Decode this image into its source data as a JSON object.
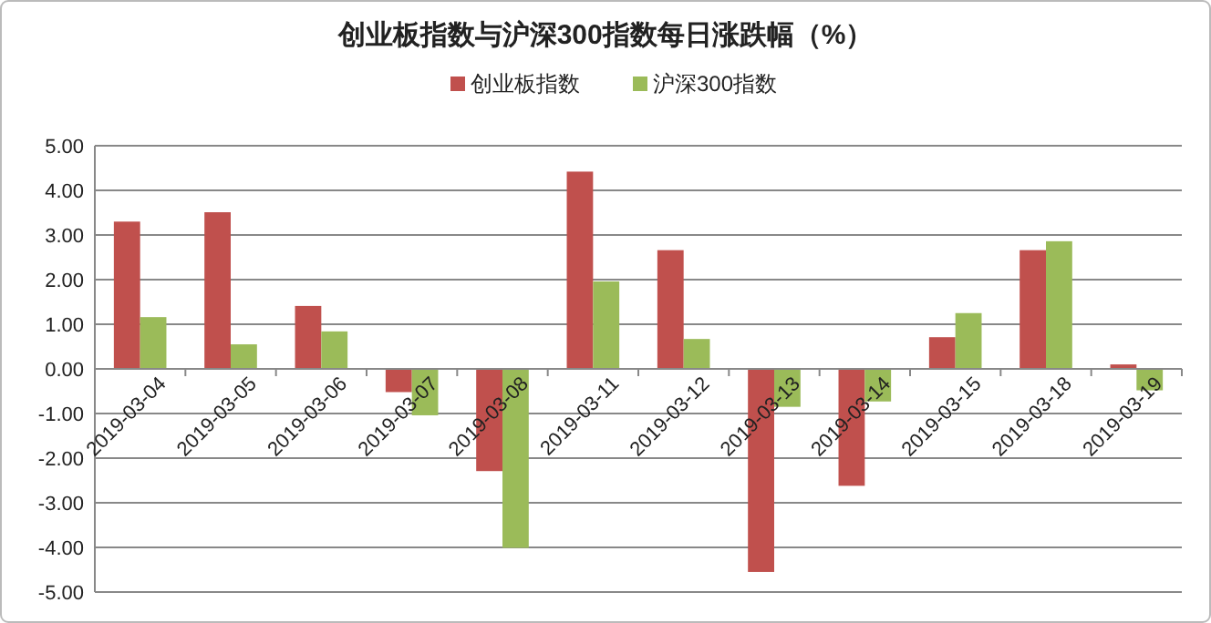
{
  "chart_data": {
    "type": "bar",
    "title": "创业板指数与沪深300指数每日涨跌幅（%）",
    "categories": [
      "2019-03-04",
      "2019-03-05",
      "2019-03-06",
      "2019-03-07",
      "2019-03-08",
      "2019-03-11",
      "2019-03-12",
      "2019-03-13",
      "2019-03-14",
      "2019-03-15",
      "2019-03-18",
      "2019-03-19"
    ],
    "series": [
      {
        "name": "创业板指数",
        "color": "#c0504d",
        "values": [
          3.3,
          3.51,
          1.41,
          -0.52,
          -2.29,
          4.42,
          2.66,
          -4.55,
          -2.62,
          0.71,
          2.66,
          0.1
        ]
      },
      {
        "name": "沪深300指数",
        "color": "#9bbb59",
        "values": [
          1.16,
          0.55,
          0.84,
          -1.04,
          -4.01,
          1.96,
          0.67,
          -0.85,
          -0.73,
          1.25,
          2.86,
          -0.48
        ]
      }
    ],
    "ylim": [
      -5,
      5
    ],
    "yticks": [
      {
        "value": -5,
        "label": "-5.00"
      },
      {
        "value": -4,
        "label": "-4.00"
      },
      {
        "value": -3,
        "label": "-3.00"
      },
      {
        "value": -2,
        "label": "-2.00"
      },
      {
        "value": -1,
        "label": "-1.00"
      },
      {
        "value": 0,
        "label": "0.00"
      },
      {
        "value": 1,
        "label": "1.00"
      },
      {
        "value": 2,
        "label": "2.00"
      },
      {
        "value": 3,
        "label": "3.00"
      },
      {
        "value": 4,
        "label": "4.00"
      },
      {
        "value": 5,
        "label": "5.00"
      }
    ],
    "grid": "y",
    "legend": "top"
  }
}
